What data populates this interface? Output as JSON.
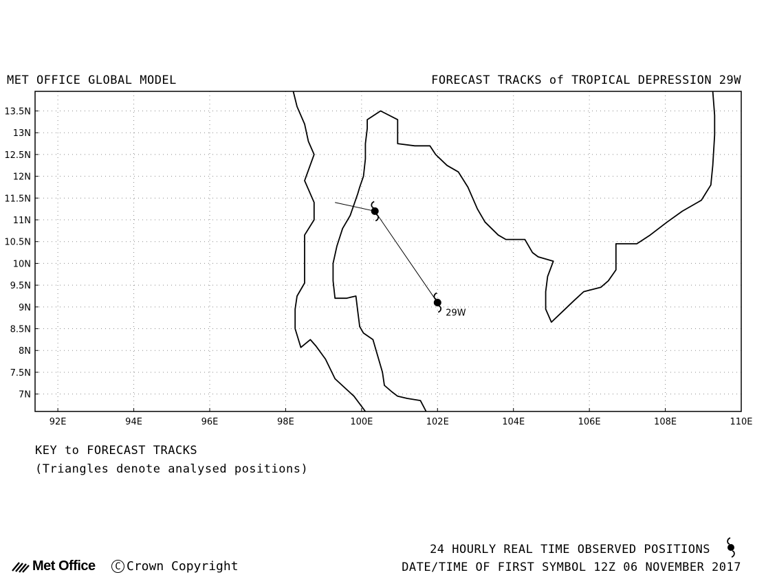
{
  "header": {
    "left_title": "MET OFFICE GLOBAL MODEL",
    "right_title": "FORECAST TRACKS of TROPICAL DEPRESSION 29W"
  },
  "map": {
    "lon_range": [
      91.4,
      110
    ],
    "lat_range": [
      6.6,
      13.95
    ],
    "x_ticks": [
      {
        "value": 92,
        "label": "92E"
      },
      {
        "value": 94,
        "label": "94E"
      },
      {
        "value": 96,
        "label": "96E"
      },
      {
        "value": 98,
        "label": "98E"
      },
      {
        "value": 100,
        "label": "100E"
      },
      {
        "value": 102,
        "label": "102E"
      },
      {
        "value": 104,
        "label": "104E"
      },
      {
        "value": 106,
        "label": "106E"
      },
      {
        "value": 108,
        "label": "108E"
      },
      {
        "value": 110,
        "label": "110E"
      }
    ],
    "y_ticks": [
      {
        "value": 7,
        "label": "7N"
      },
      {
        "value": 7.5,
        "label": "7.5N"
      },
      {
        "value": 8,
        "label": "8N"
      },
      {
        "value": 8.5,
        "label": "8.5N"
      },
      {
        "value": 9,
        "label": "9N"
      },
      {
        "value": 9.5,
        "label": "9.5N"
      },
      {
        "value": 10,
        "label": "10N"
      },
      {
        "value": 10.5,
        "label": "10.5N"
      },
      {
        "value": 11,
        "label": "11N"
      },
      {
        "value": 11.5,
        "label": "11.5N"
      },
      {
        "value": 12,
        "label": "12N"
      },
      {
        "value": 12.5,
        "label": "12.5N"
      },
      {
        "value": 13,
        "label": "13N"
      },
      {
        "value": 13.5,
        "label": "13.5N"
      }
    ],
    "grid": "dotted",
    "coastlines": [
      [
        [
          98.2,
          13.95
        ],
        [
          98.3,
          13.6
        ],
        [
          98.5,
          13.2
        ],
        [
          98.6,
          12.8
        ],
        [
          98.75,
          12.5
        ],
        [
          98.5,
          11.9
        ],
        [
          98.75,
          11.4
        ],
        [
          98.75,
          11.0
        ],
        [
          98.5,
          10.65
        ],
        [
          98.5,
          10.25
        ],
        [
          98.5,
          9.55
        ],
        [
          98.3,
          9.25
        ],
        [
          98.25,
          8.95
        ],
        [
          98.25,
          8.5
        ],
        [
          98.4,
          8.07
        ],
        [
          98.65,
          8.25
        ],
        [
          98.8,
          8.1
        ],
        [
          99.05,
          7.8
        ],
        [
          99.3,
          7.35
        ],
        [
          99.55,
          7.15
        ],
        [
          99.8,
          6.95
        ],
        [
          100.1,
          6.6
        ]
      ],
      [
        [
          101.7,
          6.6
        ],
        [
          101.55,
          6.85
        ],
        [
          101.2,
          6.9
        ],
        [
          100.95,
          6.95
        ],
        [
          100.8,
          7.05
        ],
        [
          100.6,
          7.2
        ],
        [
          100.55,
          7.5
        ],
        [
          100.4,
          7.95
        ],
        [
          100.3,
          8.25
        ],
        [
          100.05,
          8.4
        ],
        [
          99.95,
          8.55
        ],
        [
          99.9,
          8.9
        ],
        [
          99.85,
          9.25
        ],
        [
          99.6,
          9.2
        ],
        [
          99.3,
          9.2
        ],
        [
          99.25,
          9.6
        ],
        [
          99.25,
          10.0
        ],
        [
          99.35,
          10.4
        ],
        [
          99.5,
          10.8
        ],
        [
          99.7,
          11.1
        ],
        [
          99.9,
          11.6
        ],
        [
          99.95,
          11.75
        ],
        [
          100.05,
          12.0
        ],
        [
          100.1,
          12.4
        ],
        [
          100.1,
          12.75
        ],
        [
          100.15,
          13.1
        ],
        [
          100.15,
          13.3
        ],
        [
          100.5,
          13.5
        ],
        [
          100.95,
          13.3
        ],
        [
          100.95,
          12.75
        ],
        [
          101.4,
          12.7
        ],
        [
          101.8,
          12.7
        ],
        [
          101.95,
          12.5
        ],
        [
          102.25,
          12.25
        ],
        [
          102.55,
          12.1
        ],
        [
          102.8,
          11.75
        ],
        [
          103.05,
          11.25
        ],
        [
          103.25,
          10.95
        ],
        [
          103.6,
          10.65
        ],
        [
          103.8,
          10.55
        ],
        [
          104.3,
          10.55
        ],
        [
          104.5,
          10.25
        ],
        [
          104.65,
          10.15
        ],
        [
          105.05,
          10.05
        ],
        [
          104.9,
          9.7
        ],
        [
          104.85,
          9.35
        ],
        [
          104.85,
          8.95
        ],
        [
          105.0,
          8.65
        ],
        [
          105.3,
          8.9
        ],
        [
          105.6,
          9.15
        ],
        [
          105.85,
          9.35
        ],
        [
          106.3,
          9.45
        ],
        [
          106.5,
          9.6
        ],
        [
          106.7,
          9.85
        ],
        [
          106.7,
          10.15
        ],
        [
          106.7,
          10.45
        ],
        [
          107.25,
          10.45
        ],
        [
          107.6,
          10.65
        ],
        [
          108.05,
          10.95
        ],
        [
          108.45,
          11.2
        ],
        [
          108.95,
          11.45
        ],
        [
          109.2,
          11.8
        ],
        [
          109.25,
          12.25
        ],
        [
          109.3,
          12.95
        ],
        [
          109.3,
          13.4
        ],
        [
          109.25,
          13.95
        ]
      ]
    ],
    "track": {
      "storm_id": "29W",
      "points": [
        {
          "lon": 102.0,
          "lat": 9.1
        },
        {
          "lon": 100.35,
          "lat": 11.2
        },
        {
          "lon": 99.3,
          "lat": 11.4
        }
      ]
    }
  },
  "key": {
    "title": "KEY to FORECAST TRACKS",
    "note": "(Triangles denote analysed positions)"
  },
  "footer": {
    "observed_label": "24 HOURLY REAL TIME OBSERVED POSITIONS",
    "datetime_label": "DATE/TIME OF FIRST SYMBOL 12Z 06 NOVEMBER 2017",
    "logo_text": "Met Office",
    "copyright_symbol": "C",
    "copyright_text": "Crown Copyright"
  }
}
